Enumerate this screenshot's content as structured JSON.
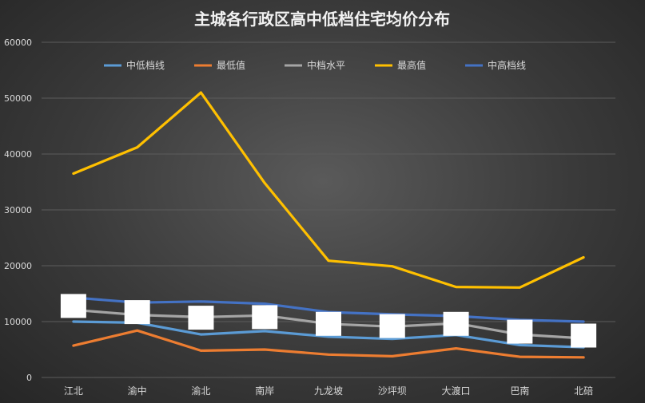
{
  "chart_data": {
    "type": "line",
    "title": "主城各行政区高中低档住宅均价分布",
    "categories": [
      "江北",
      "渝中",
      "渝北",
      "南岸",
      "九龙坡",
      "沙坪坝",
      "大渡口",
      "巴南",
      "北碚"
    ],
    "ylim": [
      0,
      60000
    ],
    "yticks": [
      0,
      10000,
      20000,
      30000,
      40000,
      50000,
      60000
    ],
    "grid": true,
    "legend_position": "top",
    "series": [
      {
        "name": "中低档线",
        "color": "#5b9bd5",
        "values": [
          10000,
          9800,
          7700,
          8300,
          7300,
          6900,
          7600,
          5800,
          5400
        ]
      },
      {
        "name": "最低值",
        "color": "#ed7d31",
        "values": [
          5700,
          8400,
          4800,
          5000,
          4100,
          3800,
          5200,
          3700,
          3600
        ]
      },
      {
        "name": "中档水平",
        "color": "#a5a5a5",
        "values": [
          12100,
          11200,
          10800,
          11100,
          9600,
          9100,
          9700,
          7700,
          7000
        ]
      },
      {
        "name": "最高值",
        "color": "#ffc000",
        "values": [
          36500,
          41200,
          51000,
          34800,
          20900,
          19900,
          16200,
          16100,
          21500
        ]
      },
      {
        "name": "中高档线",
        "color": "#4472c4",
        "values": [
          14300,
          13400,
          13600,
          13200,
          11700,
          11300,
          11000,
          10300,
          10000
        ]
      }
    ],
    "markers": {
      "color": "#ffffff",
      "values": [
        12800,
        11700,
        10700,
        10800,
        9600,
        9200,
        9600,
        8200,
        7500
      ]
    }
  }
}
